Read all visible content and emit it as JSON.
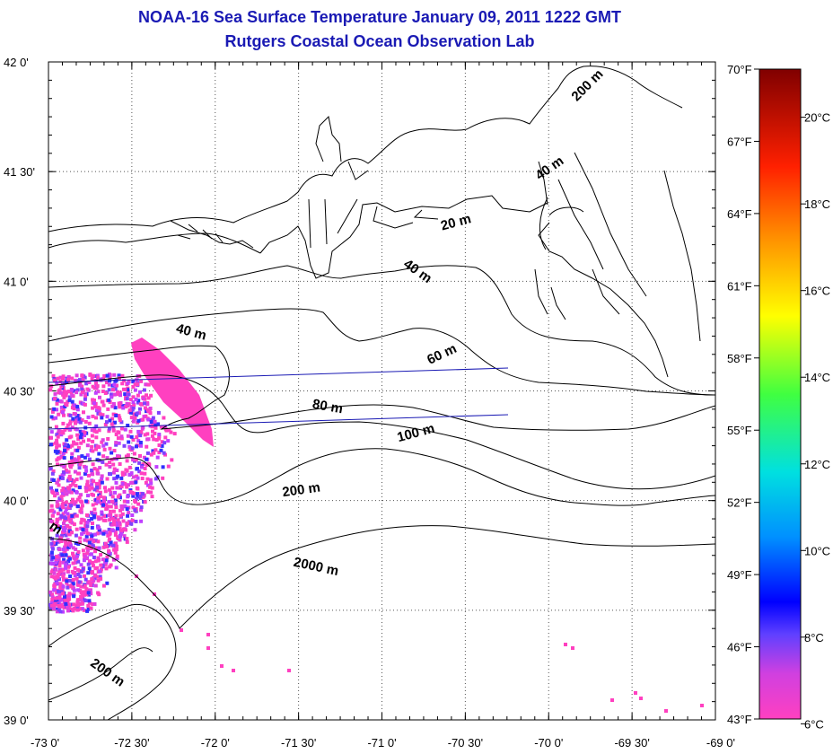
{
  "title": "NOAA-16 Sea Surface Temperature January 09, 2011 1222 GMT",
  "subtitle": "Rutgers Coastal Ocean Observation Lab",
  "map": {
    "lon_range": [
      -73,
      -69
    ],
    "lat_range": [
      39,
      42
    ],
    "lat_ticks": [
      "42 0'",
      "41 30'",
      "41 0'",
      "40 30'",
      "40 0'",
      "39 30'",
      "39 0'"
    ],
    "lon_ticks": [
      "-73 0'",
      "-72 30'",
      "-72 0'",
      "-71 30'",
      "-71 0'",
      "-70 30'",
      "-70 0'",
      "-69 30'",
      "-69 0'"
    ],
    "grid": "dotted",
    "depth_contour_labels": [
      {
        "text": "200 m",
        "lon": -69.75,
        "lat": 41.88,
        "angle": 45
      },
      {
        "text": "40 m",
        "lon": -69.98,
        "lat": 41.5,
        "angle": 35
      },
      {
        "text": "20 m",
        "lon": -70.55,
        "lat": 41.25,
        "angle": 15
      },
      {
        "text": "40 m",
        "lon": -70.8,
        "lat": 41.03,
        "angle": -35
      },
      {
        "text": "40 m",
        "lon": -72.15,
        "lat": 40.75,
        "angle": -15
      },
      {
        "text": "60 m",
        "lon": -70.63,
        "lat": 40.65,
        "angle": 25
      },
      {
        "text": "80 m",
        "lon": -71.33,
        "lat": 40.41,
        "angle": -10
      },
      {
        "text": "100 m",
        "lon": -70.79,
        "lat": 40.29,
        "angle": 15
      },
      {
        "text": "200 m",
        "lon": -71.48,
        "lat": 40.03,
        "angle": 8
      },
      {
        "text": "2000 m",
        "lon": -71.4,
        "lat": 39.68,
        "angle": -12
      },
      {
        "text": "200 m",
        "lon": -72.66,
        "lat": 39.2,
        "angle": -35
      },
      {
        "text": "m",
        "lon": -72.97,
        "lat": 39.86,
        "angle": -35
      }
    ]
  },
  "colorbar": {
    "fahrenheit_labels": [
      "70°F",
      "67°F",
      "64°F",
      "61°F",
      "58°F",
      "55°F",
      "52°F",
      "49°F",
      "46°F",
      "43°F"
    ],
    "celsius_labels": [
      "20°C",
      "18°C",
      "16°C",
      "14°C",
      "12°C",
      "10°C",
      "8°C",
      "6°C"
    ],
    "colors": [
      "#ff40c0",
      "#c040ff",
      "#3030ff",
      "#00a0ff",
      "#00e0e0",
      "#40ff40",
      "#ffff00",
      "#ffa000",
      "#ff3000",
      "#c00000",
      "#800000"
    ]
  }
}
